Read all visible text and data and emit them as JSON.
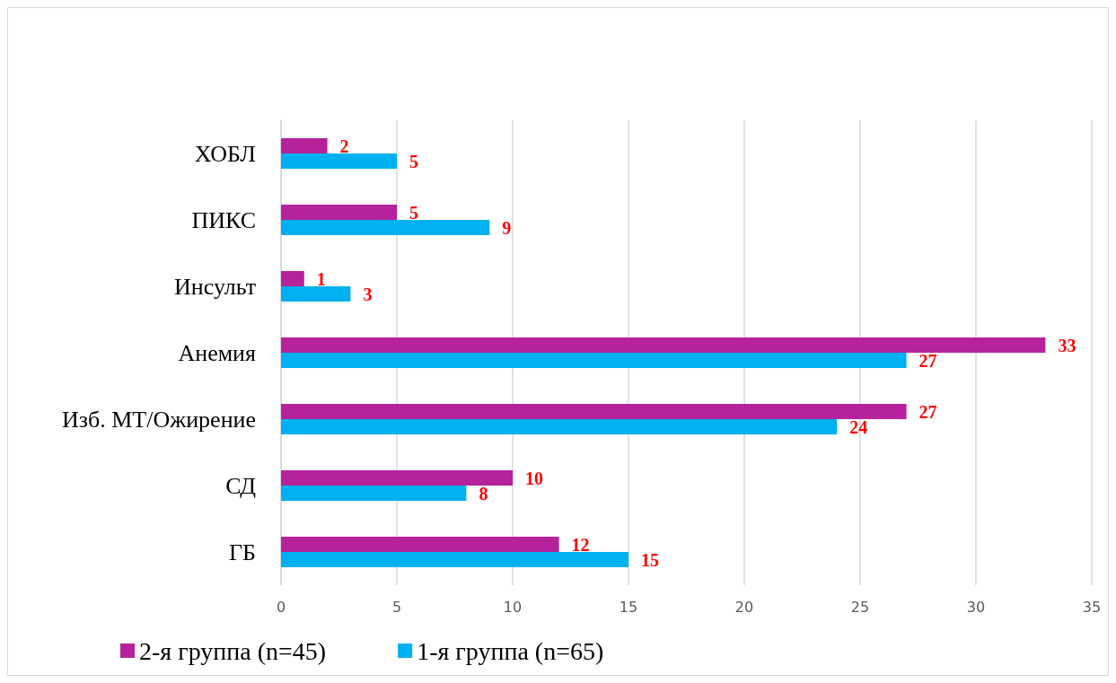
{
  "chart_data": {
    "type": "bar",
    "orientation": "horizontal",
    "categories": [
      "ХОБЛ",
      "ПИКС",
      "Инсульт",
      "Анемия",
      "Изб. МТ/Ожирение",
      "СД",
      "ГБ"
    ],
    "series": [
      {
        "name": "2-я группа (n=45)",
        "color": "#b5229b",
        "values": [
          2,
          5,
          1,
          33,
          27,
          10,
          12
        ]
      },
      {
        "name": "1-я группа (n=65)",
        "color": "#00b0f0",
        "values": [
          5,
          9,
          3,
          27,
          24,
          8,
          15
        ]
      }
    ],
    "xlim": [
      0,
      35
    ],
    "xticks": [
      0,
      5,
      10,
      15,
      20,
      25,
      30,
      35
    ],
    "grid": "x",
    "legend": "bottom left",
    "data_labels": true
  }
}
